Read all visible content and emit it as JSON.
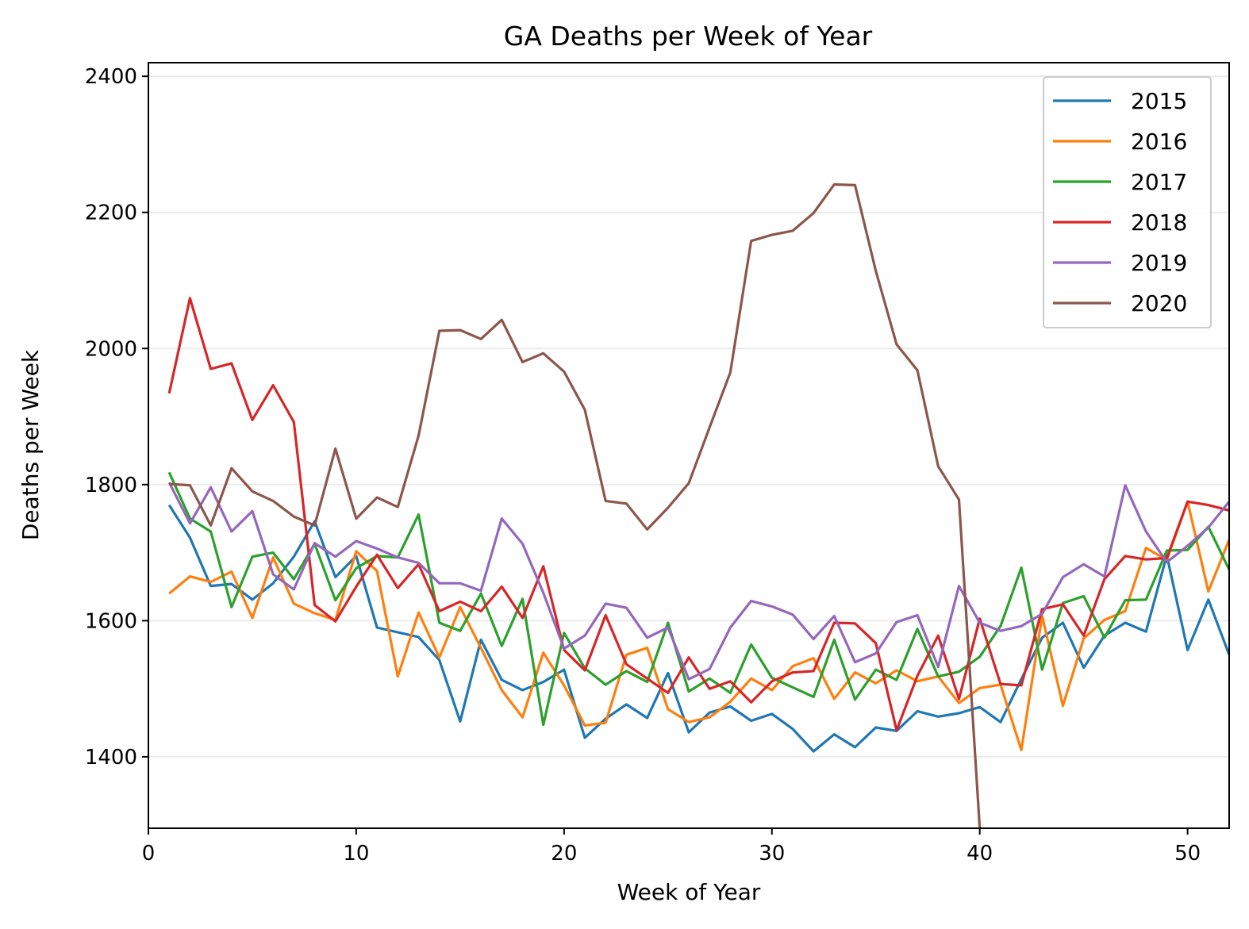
{
  "chart_data": {
    "type": "line",
    "title": "GA Deaths per Week of Year",
    "xlabel": "Week of Year",
    "ylabel": "Deaths per Week",
    "xlim": [
      0,
      52
    ],
    "ylim": [
      1295,
      2420
    ],
    "xticks": [
      0,
      10,
      20,
      30,
      40,
      50
    ],
    "yticks": [
      1400,
      1600,
      1800,
      2000,
      2200,
      2400
    ],
    "grid": "horizontal",
    "legend_position": "top-right",
    "series": [
      {
        "name": "2015",
        "color": "#1f77b4",
        "x": [
          1,
          2,
          3,
          4,
          5,
          6,
          7,
          8,
          9,
          10,
          11,
          12,
          13,
          14,
          15,
          16,
          17,
          18,
          19,
          20,
          21,
          22,
          23,
          24,
          25,
          26,
          27,
          28,
          29,
          30,
          31,
          32,
          33,
          34,
          35,
          36,
          37,
          38,
          39,
          40,
          41,
          42,
          43,
          44,
          45,
          46,
          47,
          48,
          49,
          50,
          51,
          52
        ],
        "values": [
          1770,
          1722,
          1651,
          1654,
          1631,
          1655,
          1694,
          1746,
          1664,
          1695,
          1590,
          1583,
          1576,
          1542,
          1452,
          1572,
          1513,
          1498,
          1510,
          1528,
          1428,
          1456,
          1477,
          1457,
          1523,
          1436,
          1465,
          1474,
          1453,
          1463,
          1441,
          1408,
          1433,
          1414,
          1443,
          1438,
          1467,
          1459,
          1464,
          1473,
          1451,
          1514,
          1575,
          1597,
          1531,
          1578,
          1597,
          1584,
          1696,
          1557,
          1631,
          1550
        ]
      },
      {
        "name": "2016",
        "color": "#ff7f0e",
        "x": [
          1,
          2,
          3,
          4,
          5,
          6,
          7,
          8,
          9,
          10,
          11,
          12,
          13,
          14,
          15,
          16,
          17,
          18,
          19,
          20,
          21,
          22,
          23,
          24,
          25,
          26,
          27,
          28,
          29,
          30,
          31,
          32,
          33,
          34,
          35,
          36,
          37,
          38,
          39,
          40,
          41,
          42,
          43,
          44,
          45,
          46,
          47,
          48,
          49,
          50,
          51,
          52
        ],
        "values": [
          1640,
          1665,
          1657,
          1672,
          1604,
          1693,
          1625,
          1611,
          1601,
          1702,
          1673,
          1518,
          1612,
          1546,
          1620,
          1560,
          1498,
          1458,
          1553,
          1505,
          1446,
          1450,
          1550,
          1560,
          1470,
          1451,
          1458,
          1481,
          1515,
          1498,
          1533,
          1545,
          1485,
          1524,
          1508,
          1527,
          1511,
          1518,
          1479,
          1501,
          1506,
          1410,
          1607,
          1475,
          1574,
          1601,
          1614,
          1707,
          1689,
          1775,
          1643,
          1719
        ]
      },
      {
        "name": "2017",
        "color": "#2ca02c",
        "x": [
          1,
          2,
          3,
          4,
          5,
          6,
          7,
          8,
          9,
          10,
          11,
          12,
          13,
          14,
          15,
          16,
          17,
          18,
          19,
          20,
          21,
          22,
          23,
          24,
          25,
          26,
          27,
          28,
          29,
          30,
          31,
          32,
          33,
          34,
          35,
          36,
          37,
          38,
          39,
          40,
          41,
          42,
          43,
          44,
          45,
          46,
          47,
          48,
          49,
          50,
          51,
          52
        ],
        "values": [
          1818,
          1750,
          1731,
          1620,
          1694,
          1700,
          1661,
          1713,
          1630,
          1677,
          1695,
          1693,
          1756,
          1597,
          1585,
          1640,
          1563,
          1632,
          1447,
          1582,
          1530,
          1506,
          1526,
          1510,
          1597,
          1496,
          1515,
          1494,
          1565,
          1516,
          1502,
          1488,
          1572,
          1484,
          1528,
          1513,
          1588,
          1518,
          1525,
          1547,
          1592,
          1678,
          1528,
          1626,
          1636,
          1575,
          1630,
          1631,
          1703,
          1704,
          1738,
          1675
        ]
      },
      {
        "name": "2018",
        "color": "#d62728",
        "x": [
          1,
          2,
          3,
          4,
          5,
          6,
          7,
          8,
          9,
          10,
          11,
          12,
          13,
          14,
          15,
          16,
          17,
          18,
          19,
          20,
          21,
          22,
          23,
          24,
          25,
          26,
          27,
          28,
          29,
          30,
          31,
          32,
          33,
          34,
          35,
          36,
          37,
          38,
          39,
          40,
          41,
          42,
          43,
          44,
          45,
          46,
          47,
          48,
          49,
          50,
          51,
          52
        ],
        "values": [
          1934,
          2074,
          1970,
          1978,
          1895,
          1946,
          1892,
          1623,
          1599,
          1650,
          1697,
          1648,
          1683,
          1614,
          1628,
          1614,
          1650,
          1604,
          1680,
          1557,
          1527,
          1608,
          1536,
          1515,
          1494,
          1546,
          1500,
          1511,
          1480,
          1511,
          1524,
          1526,
          1597,
          1596,
          1567,
          1439,
          1519,
          1578,
          1485,
          1603,
          1507,
          1505,
          1617,
          1624,
          1578,
          1661,
          1695,
          1690,
          1692,
          1775,
          1770,
          1762
        ]
      },
      {
        "name": "2019",
        "color": "#9467bd",
        "x": [
          1,
          2,
          3,
          4,
          5,
          6,
          7,
          8,
          9,
          10,
          11,
          12,
          13,
          14,
          15,
          16,
          17,
          18,
          19,
          20,
          21,
          22,
          23,
          24,
          25,
          26,
          27,
          28,
          29,
          30,
          31,
          32,
          33,
          34,
          35,
          36,
          37,
          38,
          39,
          40,
          41,
          42,
          43,
          44,
          45,
          46,
          47,
          48,
          49,
          50,
          51,
          52
        ],
        "values": [
          1803,
          1743,
          1796,
          1731,
          1761,
          1668,
          1646,
          1714,
          1694,
          1717,
          1706,
          1693,
          1685,
          1655,
          1655,
          1644,
          1750,
          1713,
          1641,
          1559,
          1578,
          1625,
          1619,
          1575,
          1590,
          1514,
          1529,
          1590,
          1629,
          1621,
          1609,
          1573,
          1607,
          1539,
          1552,
          1598,
          1608,
          1532,
          1651,
          1597,
          1585,
          1592,
          1610,
          1664,
          1683,
          1665,
          1799,
          1731,
          1686,
          1710,
          1737,
          1775
        ]
      },
      {
        "name": "2020",
        "color": "#8c564b",
        "x": [
          1,
          2,
          3,
          4,
          5,
          6,
          7,
          8,
          9,
          10,
          11,
          12,
          13,
          14,
          15,
          16,
          17,
          18,
          19,
          20,
          21,
          22,
          23,
          24,
          25,
          26,
          27,
          28,
          29,
          30,
          31,
          32,
          33,
          34,
          35,
          36,
          37,
          38,
          39,
          40
        ],
        "values": [
          1801,
          1799,
          1740,
          1824,
          1790,
          1776,
          1753,
          1740,
          1853,
          1750,
          1781,
          1767,
          1872,
          2026,
          2027,
          2014,
          2042,
          1980,
          1993,
          1966,
          1910,
          1776,
          1772,
          1734,
          1766,
          1802,
          1884,
          1965,
          2158,
          2167,
          2173,
          2199,
          2241,
          2240,
          2114,
          2006,
          1968,
          1827,
          1778,
          1295
        ]
      }
    ]
  }
}
